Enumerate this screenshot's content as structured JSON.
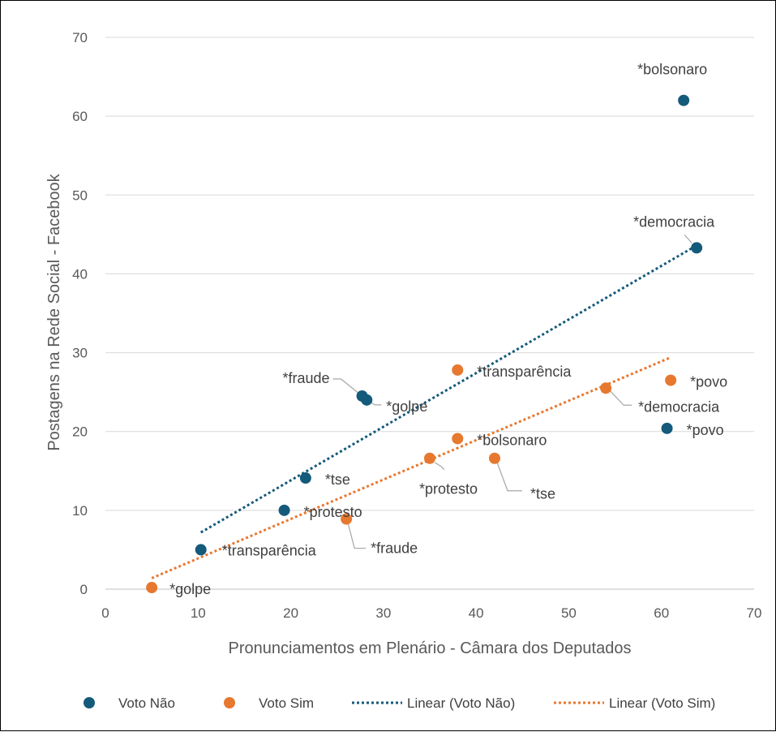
{
  "chart_data": {
    "type": "scatter",
    "xlabel": "Pronunciamentos em Plenário - Câmara dos Deputados",
    "ylabel": "Postagens na Rede Social - Facebook",
    "xlim": [
      0,
      70
    ],
    "ylim": [
      0,
      70
    ],
    "xticks": [
      "0",
      "10",
      "20",
      "30",
      "40",
      "50",
      "60",
      "70"
    ],
    "yticks": [
      "0",
      "10",
      "20",
      "30",
      "40",
      "50",
      "60",
      "70"
    ],
    "grid": "horizontal",
    "legend_position": "bottom",
    "series": [
      {
        "name": "Voto Não",
        "color": "#145a7a",
        "points": [
          {
            "x": 10.3,
            "y": 5.0,
            "label": "*transparência"
          },
          {
            "x": 19.3,
            "y": 10.0,
            "label": "*protesto"
          },
          {
            "x": 21.6,
            "y": 14.1,
            "label": "*tse"
          },
          {
            "x": 27.7,
            "y": 24.5,
            "label": "*fraude"
          },
          {
            "x": 28.2,
            "y": 24.0,
            "label": "*golpe"
          },
          {
            "x": 60.6,
            "y": 20.4,
            "label": "*povo"
          },
          {
            "x": 62.4,
            "y": 62.0,
            "label": "*bolsonaro"
          },
          {
            "x": 63.8,
            "y": 43.3,
            "label": "*democracia"
          }
        ]
      },
      {
        "name": "Voto Sim",
        "color": "#e7782f",
        "points": [
          {
            "x": 5.0,
            "y": 0.2,
            "label": "*golpe"
          },
          {
            "x": 26.0,
            "y": 8.9,
            "label": "*fraude"
          },
          {
            "x": 35.0,
            "y": 16.6,
            "label": "*protesto"
          },
          {
            "x": 38.0,
            "y": 27.8,
            "label": "*transparência"
          },
          {
            "x": 38.0,
            "y": 19.1,
            "label": "*bolsonaro"
          },
          {
            "x": 42.0,
            "y": 16.6,
            "label": "*tse"
          },
          {
            "x": 54.0,
            "y": 25.5,
            "label": "*democracia"
          },
          {
            "x": 61.0,
            "y": 26.5,
            "label": "*povo"
          }
        ]
      }
    ],
    "trendlines": [
      {
        "name": "Linear (Voto Não)",
        "color": "#145a7a",
        "x0": 10.3,
        "y0": 7.2,
        "x1": 63.8,
        "y1": 43.6
      },
      {
        "name": "Linear (Voto Sim)",
        "color": "#e7782f",
        "x0": 5.0,
        "y0": 1.4,
        "x1": 61.0,
        "y1": 29.4
      }
    ],
    "legend": [
      "Voto Não",
      "Voto Sim",
      "Linear (Voto Não)",
      "Linear (Voto Sim)"
    ]
  }
}
